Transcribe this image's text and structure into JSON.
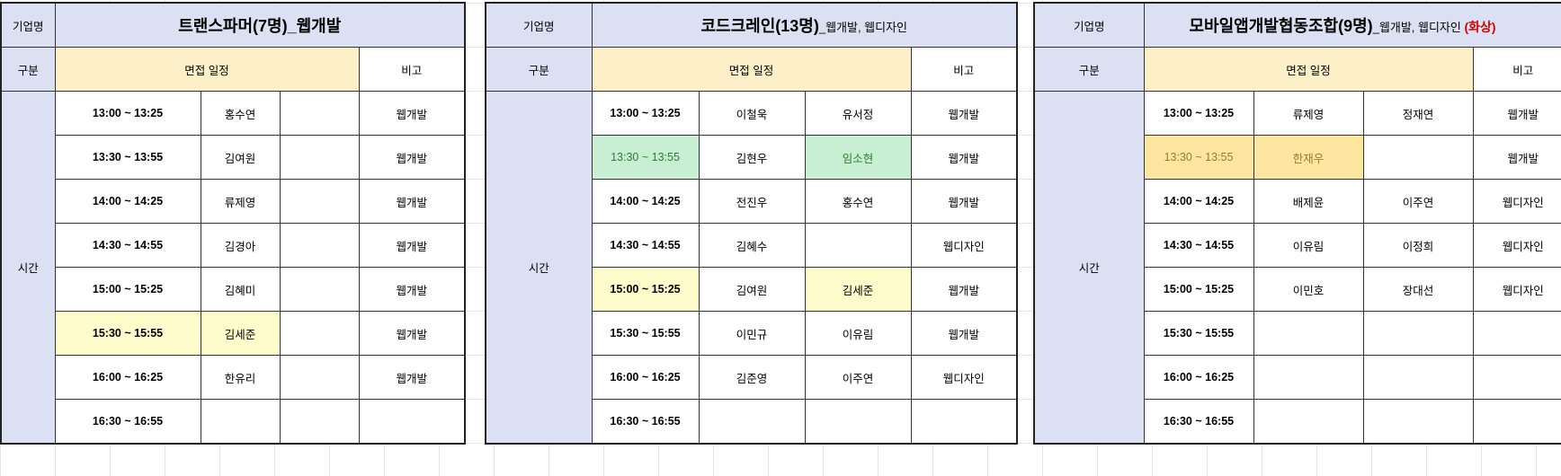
{
  "labels": {
    "company": "기업명",
    "category": "구분",
    "interview_schedule": "면접 일정",
    "remarks": "비고",
    "time": "시간"
  },
  "tables": [
    {
      "company_name": "트랜스파머(7명)_웹개발",
      "company_suffix": "",
      "company_extra": "",
      "rows": [
        {
          "time": "13:00 ~ 13:25",
          "a": "홍수연",
          "b": "",
          "note": "웹개발"
        },
        {
          "time": "13:30 ~ 13:55",
          "a": "김여원",
          "b": "",
          "note": "웹개발"
        },
        {
          "time": "14:00 ~ 14:25",
          "a": "류제영",
          "b": "",
          "note": "웹개발"
        },
        {
          "time": "14:30 ~ 14:55",
          "a": "김경아",
          "b": "",
          "note": "웹개발"
        },
        {
          "time": "15:00 ~ 15:25",
          "a": "김혜미",
          "b": "",
          "note": "웹개발"
        },
        {
          "time": "15:30 ~ 15:55",
          "a": "김세준",
          "b": "",
          "note": "웹개발"
        },
        {
          "time": "16:00 ~ 16:25",
          "a": "한유리",
          "b": "",
          "note": "웹개발"
        },
        {
          "time": "16:30 ~ 16:55",
          "a": "",
          "b": "",
          "note": ""
        }
      ]
    },
    {
      "company_name": "코드크레인(13명)",
      "company_suffix": "_웹개발, 웹디자인",
      "company_extra": "",
      "rows": [
        {
          "time": "13:00 ~ 13:25",
          "a": "이철욱",
          "b": "유서정",
          "note": "웹개발"
        },
        {
          "time": "13:30 ~ 13:55",
          "a": "김현우",
          "b": "임소현",
          "note": "웹개발"
        },
        {
          "time": "14:00 ~ 14:25",
          "a": "전진우",
          "b": "홍수연",
          "note": "웹개발"
        },
        {
          "time": "14:30 ~ 14:55",
          "a": "김혜수",
          "b": "",
          "note": "웹디자인"
        },
        {
          "time": "15:00 ~ 15:25",
          "a": "김여원",
          "b": "김세준",
          "note": "웹개발"
        },
        {
          "time": "15:30 ~ 15:55",
          "a": "이민규",
          "b": "이유림",
          "note": "웹개발"
        },
        {
          "time": "16:00 ~ 16:25",
          "a": "김준영",
          "b": "이주연",
          "note": "웹디자인"
        },
        {
          "time": "16:30 ~ 16:55",
          "a": "",
          "b": "",
          "note": ""
        }
      ]
    },
    {
      "company_name": "모바일앱개발협동조합(9명)",
      "company_suffix": "_웹개발, 웹디자인 ",
      "company_extra": "(화상)",
      "rows": [
        {
          "time": "13:00 ~ 13:25",
          "a": "류제영",
          "b": "정재연",
          "note": "웹개발"
        },
        {
          "time": "13:30 ~ 13:55",
          "a": "한재우",
          "b": "",
          "note": "웹개발"
        },
        {
          "time": "14:00 ~ 14:25",
          "a": "배제윤",
          "b": "이주연",
          "note": "웹디자인"
        },
        {
          "time": "14:30 ~ 14:55",
          "a": "이유림",
          "b": "이정희",
          "note": "웹디자인"
        },
        {
          "time": "15:00 ~ 15:25",
          "a": "이민호",
          "b": "장대선",
          "note": "웹디자인"
        },
        {
          "time": "15:30 ~ 15:55",
          "a": "",
          "b": "",
          "note": ""
        },
        {
          "time": "16:00 ~ 16:25",
          "a": "",
          "b": "",
          "note": ""
        },
        {
          "time": "16:30 ~ 16:55",
          "a": "",
          "b": "",
          "note": ""
        }
      ]
    }
  ]
}
